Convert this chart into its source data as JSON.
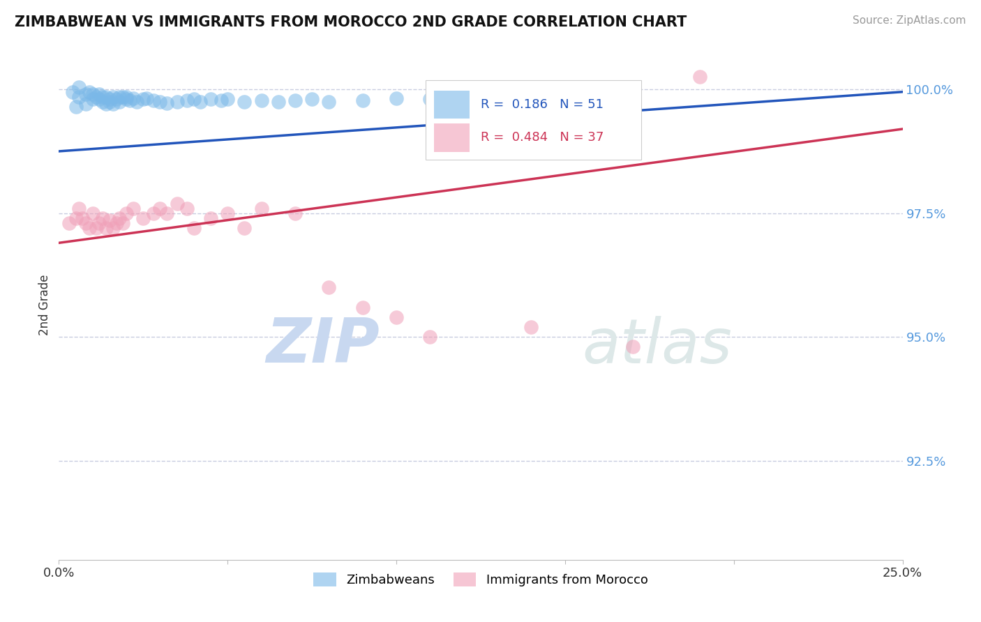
{
  "title": "ZIMBABWEAN VS IMMIGRANTS FROM MOROCCO 2ND GRADE CORRELATION CHART",
  "source": "Source: ZipAtlas.com",
  "xlabel_blue": "Zimbabweans",
  "xlabel_pink": "Immigrants from Morocco",
  "ylabel": "2nd Grade",
  "r_blue": 0.186,
  "n_blue": 51,
  "r_pink": 0.484,
  "n_pink": 37,
  "xlim": [
    0.0,
    0.25
  ],
  "ylim": [
    0.905,
    1.008
  ],
  "yticks": [
    0.925,
    0.95,
    0.975,
    1.0
  ],
  "ytick_labels": [
    "92.5%",
    "95.0%",
    "97.5%",
    "100.0%"
  ],
  "background_color": "#ffffff",
  "blue_color": "#7ab8e8",
  "pink_color": "#f0a0b8",
  "blue_line_color": "#2255bb",
  "pink_line_color": "#cc3355",
  "grid_color": "#c8cce0",
  "watermark_color_zip": "#c8d8f0",
  "watermark_color_atlas": "#dde8e8",
  "blue_trend_x": [
    0.0,
    0.25
  ],
  "blue_trend_y": [
    0.9875,
    0.9995
  ],
  "pink_trend_x": [
    0.0,
    0.25
  ],
  "pink_trend_y": [
    0.969,
    0.992
  ],
  "blue_scatter_x": [
    0.004,
    0.006,
    0.006,
    0.008,
    0.008,
    0.009,
    0.01,
    0.01,
    0.011,
    0.012,
    0.012,
    0.013,
    0.013,
    0.014,
    0.014,
    0.015,
    0.015,
    0.016,
    0.016,
    0.017,
    0.018,
    0.018,
    0.019,
    0.02,
    0.02,
    0.021,
    0.022,
    0.023,
    0.025,
    0.026,
    0.028,
    0.03,
    0.032,
    0.035,
    0.038,
    0.04,
    0.042,
    0.045,
    0.048,
    0.05,
    0.055,
    0.06,
    0.065,
    0.07,
    0.075,
    0.08,
    0.09,
    0.1,
    0.11,
    0.17,
    0.005
  ],
  "blue_scatter_y": [
    0.9995,
    1.0005,
    0.9985,
    0.999,
    0.997,
    0.9995,
    0.998,
    0.999,
    0.9985,
    0.999,
    0.998,
    0.9985,
    0.9975,
    0.9985,
    0.997,
    0.998,
    0.9975,
    0.9985,
    0.997,
    0.998,
    0.9985,
    0.9975,
    0.9985,
    0.998,
    0.9985,
    0.9978,
    0.9982,
    0.9975,
    0.998,
    0.9982,
    0.9978,
    0.9975,
    0.9972,
    0.9975,
    0.9978,
    0.998,
    0.9975,
    0.998,
    0.9978,
    0.998,
    0.9975,
    0.9978,
    0.9975,
    0.9978,
    0.998,
    0.9975,
    0.9978,
    0.9982,
    0.998,
    0.9985,
    0.9965
  ],
  "pink_scatter_x": [
    0.003,
    0.005,
    0.006,
    0.007,
    0.008,
    0.009,
    0.01,
    0.011,
    0.012,
    0.013,
    0.014,
    0.015,
    0.016,
    0.017,
    0.018,
    0.019,
    0.02,
    0.022,
    0.025,
    0.028,
    0.03,
    0.032,
    0.035,
    0.038,
    0.04,
    0.045,
    0.05,
    0.055,
    0.06,
    0.07,
    0.08,
    0.09,
    0.1,
    0.11,
    0.14,
    0.17,
    0.19
  ],
  "pink_scatter_y": [
    0.973,
    0.974,
    0.976,
    0.974,
    0.973,
    0.972,
    0.975,
    0.972,
    0.973,
    0.974,
    0.972,
    0.9735,
    0.972,
    0.973,
    0.974,
    0.973,
    0.975,
    0.976,
    0.974,
    0.975,
    0.976,
    0.975,
    0.977,
    0.976,
    0.972,
    0.974,
    0.975,
    0.972,
    0.976,
    0.975,
    0.96,
    0.956,
    0.954,
    0.95,
    0.952,
    0.948,
    1.0025
  ]
}
